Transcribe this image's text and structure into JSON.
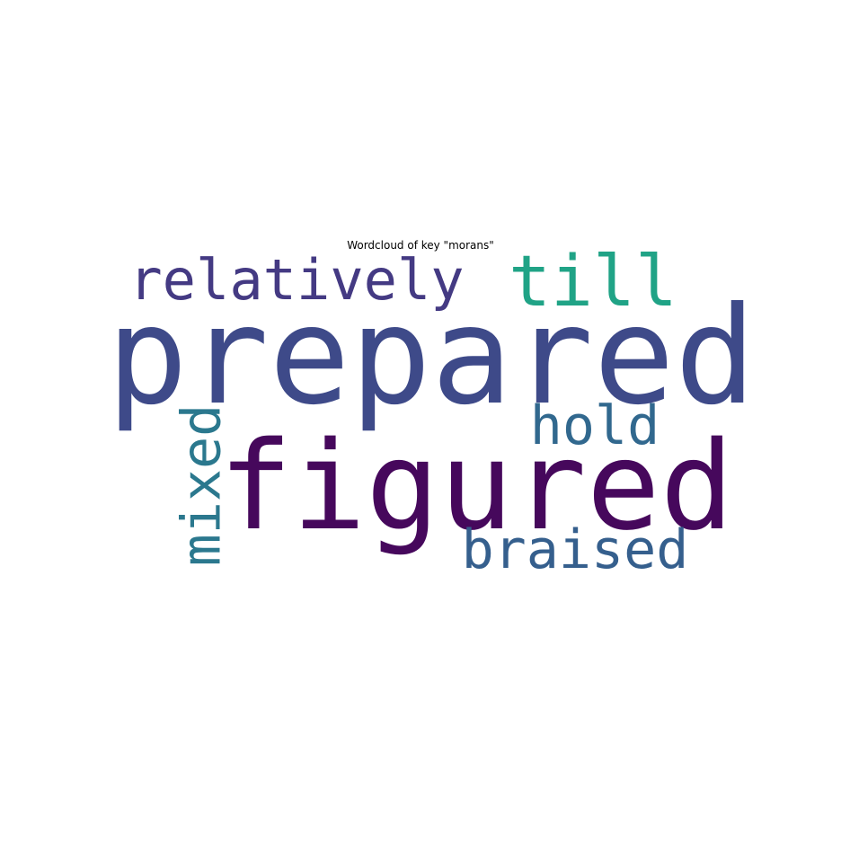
{
  "chart_data": {
    "type": "wordcloud",
    "title": "Wordcloud of key \"morans\"",
    "words": [
      {
        "text": "prepared",
        "weight": 1.0,
        "color": "#3e4a89",
        "rotated": false
      },
      {
        "text": "figured",
        "weight": 0.92,
        "color": "#46085c",
        "rotated": false
      },
      {
        "text": "relatively",
        "weight": 0.45,
        "color": "#443a83",
        "rotated": false
      },
      {
        "text": "till",
        "weight": 0.45,
        "color": "#20a386",
        "rotated": false
      },
      {
        "text": "hold",
        "weight": 0.4,
        "color": "#31688e",
        "rotated": false
      },
      {
        "text": "mixed",
        "weight": 0.4,
        "color": "#2b788e",
        "rotated": true
      },
      {
        "text": "braised",
        "weight": 0.4,
        "color": "#355f8d",
        "rotated": false
      }
    ]
  }
}
